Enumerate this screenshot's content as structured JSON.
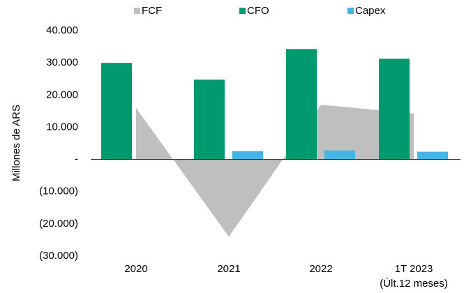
{
  "chart_data": {
    "type": "bar",
    "ylabel": "Millones de ARS",
    "categories": [
      [
        "2020"
      ],
      [
        "2021"
      ],
      [
        "2022"
      ],
      [
        "1T 2023",
        "(Últ.12 meses)"
      ]
    ],
    "series": [
      {
        "name": "FCF",
        "type": "area",
        "color": "#bfbfbf",
        "values": [
          16000,
          -24000,
          17000,
          14300
        ]
      },
      {
        "name": "CFO",
        "color": "#009a6e",
        "values": [
          30000,
          24800,
          34300,
          31300
        ]
      },
      {
        "name": "Capex",
        "color": "#43b4e4",
        "values": [
          0,
          2600,
          2800,
          2400
        ]
      }
    ],
    "ylim": [
      -30000,
      40000
    ],
    "yticks": [
      {
        "value": 40000,
        "label": "40.000"
      },
      {
        "value": 30000,
        "label": "30.000"
      },
      {
        "value": 20000,
        "label": "20.000"
      },
      {
        "value": 10000,
        "label": "10.000"
      },
      {
        "value": 0,
        "label": "-"
      },
      {
        "value": -10000,
        "label": "(10.000)"
      },
      {
        "value": -20000,
        "label": "(20.000)"
      },
      {
        "value": -30000,
        "label": "(30.000)"
      }
    ],
    "legend": "top"
  }
}
